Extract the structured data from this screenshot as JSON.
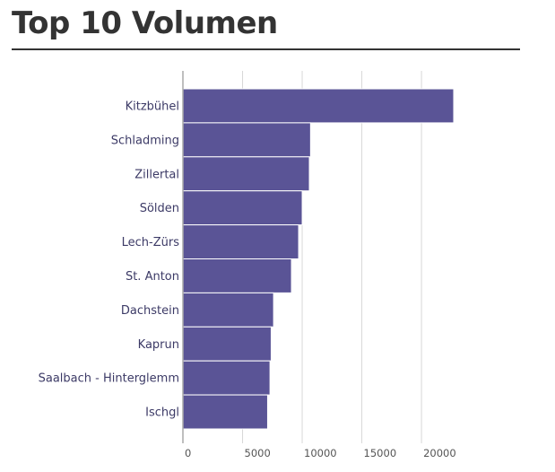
{
  "page": {
    "title": "Top 10 Volumen"
  },
  "chart_data": {
    "type": "bar",
    "orientation": "horizontal",
    "categories": [
      "Kitzbühel",
      "Schladming",
      "Zillertal",
      "Sölden",
      "Lech-Zürs",
      "St. Anton",
      "Dachstein",
      "Kaprun",
      "Saalbach - Hinterglemm",
      "Ischgl"
    ],
    "values": [
      22700,
      10700,
      10600,
      10000,
      9700,
      9100,
      7600,
      7400,
      7300,
      7100
    ],
    "xlim": [
      0,
      22700
    ],
    "xticks": [
      0,
      5000,
      10000,
      15000,
      20000
    ],
    "xtick_labels": [
      "0",
      "5000",
      "10000",
      "15000",
      "20000"
    ],
    "grid": "vertical",
    "bar_color": "#5a5496",
    "bar_stroke": "#ffffff",
    "grid_color": "#d8d8d8",
    "axis_color": "#aaaaaa"
  }
}
